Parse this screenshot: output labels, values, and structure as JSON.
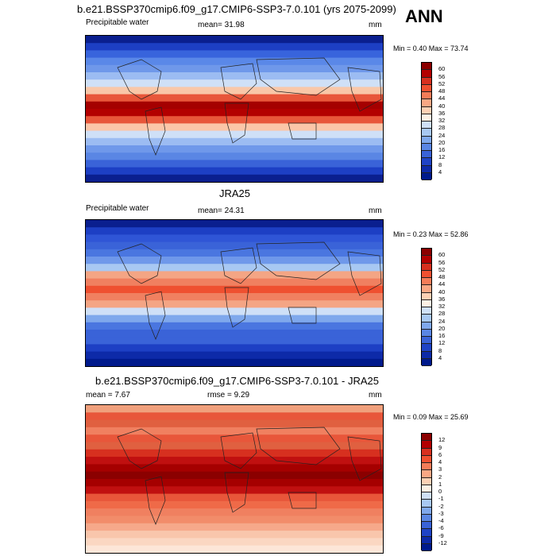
{
  "page": {
    "main_title": "b.e21.BSSP370cmip6.f09_g17.CMIP6-SSP3-7.0.101 (yrs 2075-2099)",
    "season": "ANN"
  },
  "panels": [
    {
      "title": "",
      "left_label": "Precipitable water",
      "center_label": "mean=  31.98",
      "right_label": "mm",
      "min_max": "Min =   0.40 Max =  73.74",
      "colorbar": {
        "labels": [
          "60",
          "56",
          "52",
          "48",
          "44",
          "40",
          "36",
          "32",
          "28",
          "24",
          "20",
          "16",
          "12",
          "8",
          "4"
        ],
        "colors": [
          "#8b0000",
          "#b30000",
          "#d7301f",
          "#ef5030",
          "#f47c58",
          "#f9a784",
          "#fcd0b4",
          "#fdf0e4",
          "#cfe0f7",
          "#a8c8f2",
          "#7fa8ec",
          "#5a86e4",
          "#3a63d8",
          "#1f43c6",
          "#0d2aa8",
          "#001a8c"
        ]
      },
      "map_gradient": [
        "#0a1f8f",
        "#1d3fc4",
        "#3864dc",
        "#5a88e8",
        "#6f98ea",
        "#9cbcf2",
        "#cfe0f7",
        "#f9c7a8",
        "#e8563a",
        "#a50000",
        "#b30000",
        "#e8563a",
        "#fbc6a8",
        "#cfe0f7",
        "#9cbcf2",
        "#6f98ea",
        "#5a86e4",
        "#3a63d8",
        "#1d3fc4",
        "#0a1f8f"
      ]
    },
    {
      "title": "JRA25",
      "left_label": "Precipitable water",
      "center_label": "mean=  24.31",
      "right_label": "mm",
      "min_max": "Min =   0.23 Max =  52.86",
      "colorbar": {
        "labels": [
          "60",
          "56",
          "52",
          "48",
          "44",
          "40",
          "36",
          "32",
          "28",
          "24",
          "20",
          "16",
          "12",
          "8",
          "4"
        ],
        "colors": [
          "#8b0000",
          "#b30000",
          "#d7301f",
          "#ef5030",
          "#f47c58",
          "#f9a784",
          "#fcd0b4",
          "#fdf0e4",
          "#cfe0f7",
          "#a8c8f2",
          "#7fa8ec",
          "#5a86e4",
          "#3a63d8",
          "#1f43c6",
          "#0d2aa8",
          "#001a8c"
        ]
      },
      "map_gradient": [
        "#0a1f8f",
        "#1d3fc4",
        "#2f55d6",
        "#3a63d8",
        "#4a76e0",
        "#6f98ea",
        "#a8c8f2",
        "#f4a584",
        "#f08060",
        "#ef5030",
        "#f08060",
        "#f4a584",
        "#cfe0f7",
        "#7fa8ec",
        "#4a76e0",
        "#3a63d8",
        "#3a63d8",
        "#1d3fc4",
        "#0d2aa8",
        "#001a8c"
      ]
    },
    {
      "title": "b.e21.BSSP370cmip6.f09_g17.CMIP6-SSP3-7.0.101 - JRA25",
      "left_label": "mean =   7.67",
      "center_label": "rmse =   9.29",
      "right_label": "mm",
      "min_max": "Min =   0.09 Max =  25.69",
      "colorbar": {
        "labels": [
          "12",
          "9",
          "6",
          "4",
          "3",
          "2",
          "1",
          "0",
          "-1",
          "-2",
          "-3",
          "-4",
          "-6",
          "-9",
          "-12"
        ],
        "colors": [
          "#8b0000",
          "#b30000",
          "#d7301f",
          "#ef5030",
          "#f47c58",
          "#f9a784",
          "#fcd0b4",
          "#fdf0e4",
          "#cfe0f7",
          "#a8c8f2",
          "#7fa8ec",
          "#5a86e4",
          "#3a63d8",
          "#1f43c6",
          "#0d2aa8",
          "#001a8c"
        ]
      },
      "map_gradient": [
        "#f0a07c",
        "#e8563a",
        "#e06040",
        "#f08060",
        "#e8563a",
        "#e06040",
        "#d7301f",
        "#c01010",
        "#a50000",
        "#8b0000",
        "#a50000",
        "#c01010",
        "#e8563a",
        "#ef6a48",
        "#f08060",
        "#f28c6a",
        "#f6a88a",
        "#f9c6ac",
        "#fbd7c2",
        "#fde6d8"
      ]
    }
  ]
}
